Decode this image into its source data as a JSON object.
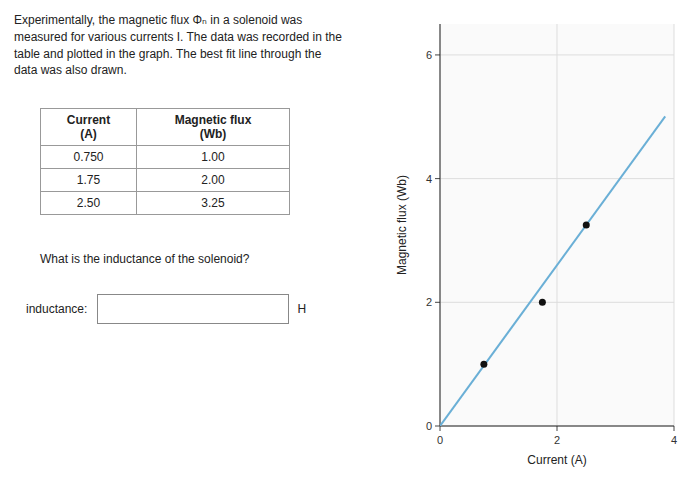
{
  "text_paragraph": "Experimentally, the magnetic flux Φₙ in a solenoid was\nmeasured for various currents I. The data was recorded in the\ntable and plotted in the graph. The best fit line through the\ndata was also drawn.",
  "table": {
    "headers": [
      "Current\n(A)",
      "Magnetic flux\n(Wb)"
    ],
    "rows": [
      [
        "0.750",
        "1.00"
      ],
      [
        "1.75",
        "2.00"
      ],
      [
        "2.50",
        "3.25"
      ]
    ]
  },
  "question": "What is the inductance of the solenoid?",
  "input": {
    "label": "inductance:",
    "unit": "H"
  },
  "chart_data": {
    "type": "scatter",
    "xlabel": "Current (A)",
    "ylabel": "Magnetic flux (Wb)",
    "xlim": [
      0,
      4
    ],
    "ylim": [
      0,
      6.5
    ],
    "xticks": [
      0,
      2,
      4
    ],
    "yticks": [
      0,
      2,
      4,
      6
    ],
    "grid": true,
    "series": [
      {
        "type": "line",
        "color": "#6aafd6",
        "x": [
          0.0,
          3.85
        ],
        "values": [
          0.0,
          5.005
        ]
      },
      {
        "type": "scatter",
        "color": "#111111",
        "x": [
          0.75,
          1.75,
          2.5
        ],
        "values": [
          1.0,
          2.0,
          3.25
        ]
      }
    ]
  }
}
